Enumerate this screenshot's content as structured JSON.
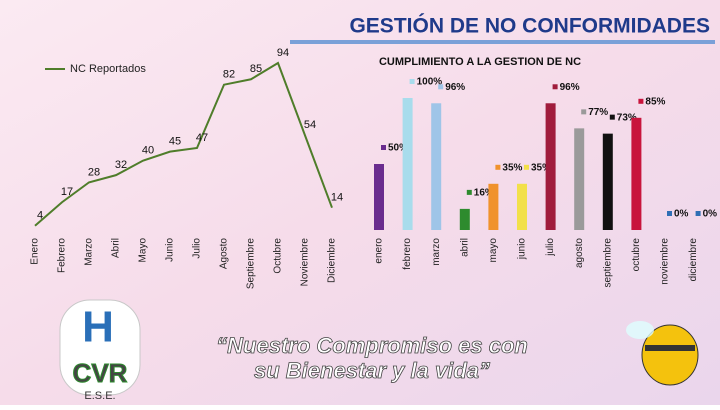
{
  "title": "GESTIÓN DE NO CONFORMIDADES",
  "slogan": [
    "“Nuestro Compromiso es con",
    "su Bienestar y la vida”"
  ],
  "logo": {
    "letter": "H",
    "name": "CVR",
    "suffix": "E.S.E."
  },
  "chart_data": [
    {
      "type": "line",
      "categories": [
        "Enero",
        "Febrero",
        "Marzo",
        "Abril",
        "Mayo",
        "Junio",
        "Julio",
        "Agosto",
        "Septiembre",
        "Octubre",
        "Noviembre",
        "Diciembre"
      ],
      "series": [
        {
          "name": "NC Reportados",
          "color": "#4f7d2a",
          "values": [
            4,
            17,
            28,
            32,
            40,
            45,
            47,
            82,
            85,
            94,
            54,
            14
          ]
        }
      ]
    },
    {
      "type": "bar",
      "title": "CUMPLIMIENTO A LA GESTION DE NC",
      "categories": [
        "enero",
        "febrero",
        "marzo",
        "abril",
        "mayo",
        "junio",
        "julio",
        "agosto",
        "septiembre",
        "octubre",
        "noviembre",
        "diciembre"
      ],
      "values": [
        50,
        100,
        96,
        16,
        35,
        35,
        96,
        77,
        73,
        85,
        0,
        0
      ],
      "value_labels": [
        "50%",
        "100%",
        "96%",
        "16%",
        "35%",
        "35%",
        "96%",
        "77%",
        "73%",
        "85%",
        "0%",
        "0%"
      ],
      "colors": [
        "#6a2c8e",
        "#a8dcec",
        "#9fc5e8",
        "#2e8b2e",
        "#f0922c",
        "#f2e04a",
        "#a01c3c",
        "#9a9a9a",
        "#111111",
        "#c8143c",
        "#2f6fb5",
        "#2f6fb5"
      ]
    }
  ]
}
